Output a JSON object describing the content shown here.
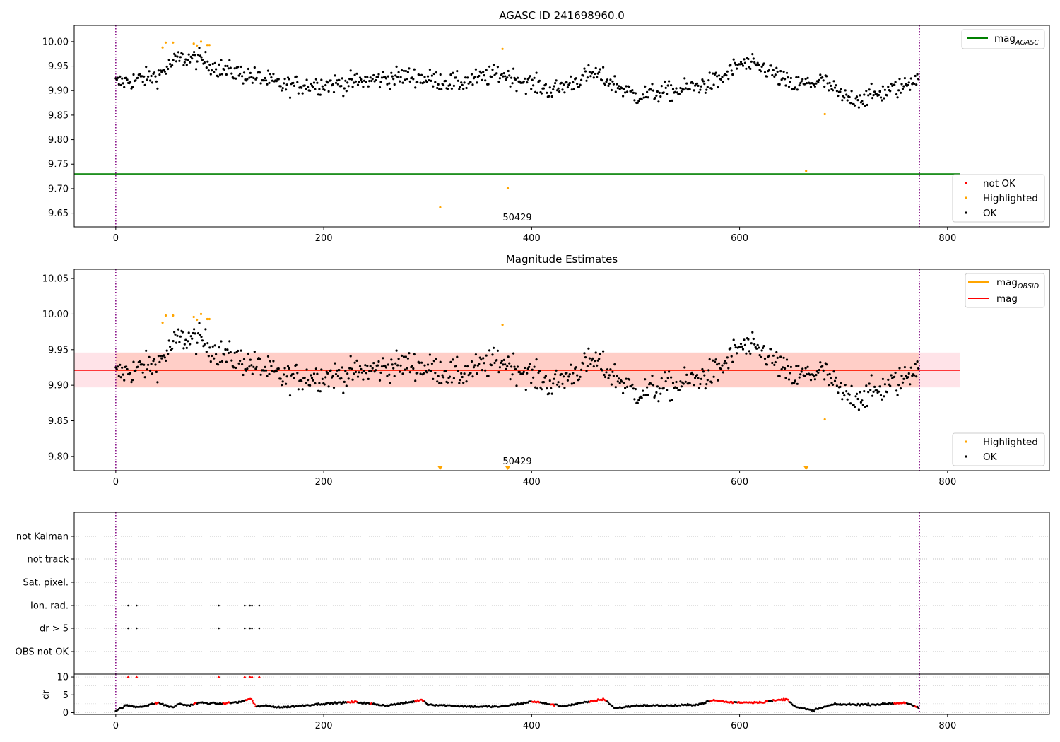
{
  "colors": {
    "ok": "#000000",
    "not_ok": "#ff0000",
    "highlighted": "#ffa500",
    "mag_agasc": "#008000",
    "mag_obsid": "#ffa500",
    "mag": "#ff0000",
    "obs_boundary": "#800080",
    "band_fill": "#ffc0cb"
  },
  "chart_data": [
    {
      "type": "scatter",
      "title": "AGASC ID 241698960.0",
      "xlim": [
        -40,
        898
      ],
      "ylim": [
        9.622,
        10.033
      ],
      "xticks": [
        0,
        200,
        400,
        600,
        800
      ],
      "yticks": [
        9.65,
        9.7,
        9.75,
        9.8,
        9.85,
        9.9,
        9.95,
        10.0
      ],
      "obs_boundaries": [
        0,
        773
      ],
      "annotations": [
        {
          "text": "50429",
          "x": 386,
          "y": 9.632
        }
      ],
      "reference_lines": [
        {
          "name": "mag$_{AGASC}$",
          "label": "mag",
          "sub": "AGASC",
          "y": 9.73,
          "x_range": [
            -40,
            812
          ]
        }
      ],
      "legends": [
        {
          "position": "top-right",
          "entries": [
            {
              "kind": "line",
              "label": "mag",
              "sub": "AGASC",
              "color": "#008000"
            }
          ]
        },
        {
          "position": "bottom-right",
          "entries": [
            {
              "kind": "dot",
              "label": "not OK",
              "color": "#ff0000"
            },
            {
              "kind": "dot",
              "label": "Highlighted",
              "color": "#ffa500"
            },
            {
              "kind": "dot",
              "label": "OK",
              "color": "#000000"
            }
          ]
        }
      ],
      "series": [
        {
          "name": "Highlighted",
          "x": [
            45,
            48,
            55,
            75,
            78,
            82,
            88,
            90,
            372,
            312,
            377,
            664,
            682
          ],
          "y": [
            9.988,
            9.998,
            9.998,
            9.996,
            9.992,
            10.0,
            9.993,
            9.993,
            9.985,
            9.662,
            9.701,
            9.736,
            9.852
          ]
        }
      ],
      "ok_trend": {
        "x": [
          0,
          40,
          60,
          80,
          100,
          140,
          160,
          220,
          280,
          330,
          370,
          420,
          460,
          500,
          540,
          580,
          600,
          625,
          650,
          680,
          700,
          720,
          760,
          773
        ],
        "y": [
          9.915,
          9.93,
          9.965,
          9.965,
          9.945,
          9.925,
          9.91,
          9.915,
          9.93,
          9.915,
          9.935,
          9.9,
          9.935,
          9.89,
          9.9,
          9.92,
          9.955,
          9.945,
          9.91,
          9.92,
          9.885,
          9.885,
          9.91,
          9.935
        ]
      },
      "ok_scatter": 0.018,
      "ok_count": 770
    },
    {
      "type": "scatter",
      "title": "Magnitude Estimates",
      "xlim": [
        -40,
        898
      ],
      "ylim": [
        9.78,
        10.063
      ],
      "xticks": [
        0,
        200,
        400,
        600,
        800
      ],
      "yticks": [
        9.8,
        9.85,
        9.9,
        9.95,
        10.0,
        10.05
      ],
      "obs_boundaries": [
        0,
        773
      ],
      "annotations": [
        {
          "text": "50429",
          "x": 386,
          "y": 9.786
        }
      ],
      "reference_lines": [
        {
          "name": "mag",
          "y": 9.921,
          "x_range": [
            -40,
            812
          ],
          "band": [
            9.897,
            9.946
          ]
        },
        {
          "name": "mag$_{OBSID}$",
          "label": "mag",
          "sub": "OBSID",
          "y": 9.921,
          "band": [
            9.897,
            9.946
          ],
          "x_range": [
            0,
            773
          ]
        }
      ],
      "offscale_markers": [
        {
          "x": 312,
          "label": "▼"
        },
        {
          "x": 377,
          "label": "▼"
        },
        {
          "x": 664,
          "label": "▼"
        }
      ],
      "legends": [
        {
          "position": "top-right",
          "entries": [
            {
              "kind": "line",
              "label": "mag",
              "sub": "OBSID",
              "color": "#ffa500"
            },
            {
              "kind": "line",
              "label": "mag",
              "sub": "",
              "color": "#ff0000"
            }
          ]
        },
        {
          "position": "bottom-right",
          "entries": [
            {
              "kind": "dot",
              "label": "Highlighted",
              "color": "#ffa500"
            },
            {
              "kind": "dot",
              "label": "OK",
              "color": "#000000"
            }
          ]
        }
      ],
      "series": [
        {
          "name": "Highlighted",
          "x": [
            45,
            48,
            55,
            75,
            78,
            82,
            88,
            90,
            372,
            682
          ],
          "y": [
            9.988,
            9.998,
            9.998,
            9.996,
            9.992,
            10.0,
            9.993,
            9.993,
            9.985,
            9.852
          ]
        }
      ]
    },
    {
      "type": "scatter",
      "title": "",
      "xlim": [
        -40,
        898
      ],
      "xticks": [
        0,
        200,
        400,
        600,
        800
      ],
      "categories": [
        "not Kalman",
        "not track",
        "Sat. pixel.",
        "Ion. rad.",
        "dr > 5",
        "OBS not OK"
      ],
      "obs_boundaries": [
        0,
        773
      ],
      "series": [
        {
          "name": "Ion. rad.",
          "x": [
            12,
            20,
            99,
            124,
            129,
            131,
            138
          ]
        },
        {
          "name": "dr > 5",
          "x": [
            12,
            20,
            99,
            124,
            129,
            131,
            138
          ]
        }
      ]
    },
    {
      "type": "scatter",
      "title": "",
      "ylabel": "dr",
      "xlim": [
        -40,
        898
      ],
      "ylim": [
        -0.5,
        10.8
      ],
      "xticks": [
        0,
        200,
        400,
        600,
        800
      ],
      "yticks": [
        0,
        5,
        10
      ],
      "obs_boundaries": [
        0,
        773
      ],
      "dr_trend": {
        "x": [
          0,
          10,
          20,
          30,
          40,
          55,
          60,
          70,
          80,
          100,
          120,
          130,
          135,
          140,
          160,
          200,
          230,
          260,
          280,
          295,
          300,
          340,
          370,
          395,
          400,
          430,
          470,
          480,
          500,
          540,
          560,
          575,
          590,
          620,
          645,
          655,
          670,
          690,
          730,
          760,
          773
        ],
        "y": [
          0.5,
          2.0,
          1.6,
          2.0,
          2.8,
          1.4,
          2.5,
          2.0,
          2.8,
          2.5,
          3.0,
          4.0,
          1.5,
          2.0,
          1.5,
          2.5,
          3.0,
          2.0,
          2.8,
          3.6,
          2.3,
          1.7,
          1.7,
          2.8,
          3.2,
          1.8,
          3.8,
          1.2,
          2.0,
          2.0,
          2.3,
          3.5,
          2.9,
          2.9,
          3.8,
          1.5,
          0.6,
          2.3,
          2.3,
          2.8,
          1.2
        ]
      },
      "clip_points": {
        "x": [
          12,
          20,
          99,
          124,
          129,
          131,
          138
        ],
        "y": [
          10,
          10,
          10,
          10,
          10,
          10,
          10
        ]
      },
      "red_ranges": [
        [
          38,
          42
        ],
        [
          75,
          78
        ],
        [
          103,
          110
        ],
        [
          125,
          135
        ],
        [
          222,
          232
        ],
        [
          244,
          246
        ],
        [
          288,
          297
        ],
        [
          400,
          408
        ],
        [
          418,
          422
        ],
        [
          455,
          472
        ],
        [
          572,
          595
        ],
        [
          598,
          628
        ],
        [
          632,
          648
        ],
        [
          748,
          760
        ],
        [
          768,
          770
        ]
      ]
    }
  ]
}
